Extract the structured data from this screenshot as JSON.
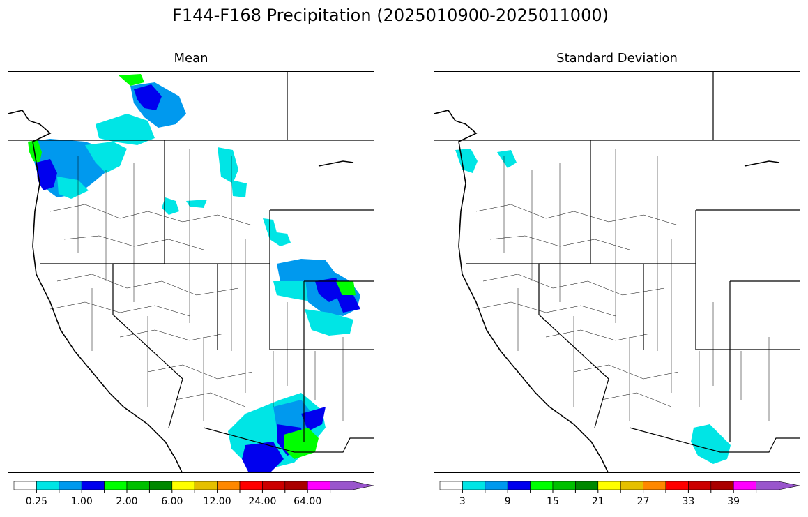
{
  "title": "F144-F168 Precipitation (2025010900-2025011000)",
  "panels": [
    {
      "subtitle": "Mean"
    },
    {
      "subtitle": "Standard Deviation"
    }
  ],
  "colorbar_colors": [
    "#ffffff",
    "#00e5e5",
    "#0099ee",
    "#0000ee",
    "#00ff00",
    "#00c000",
    "#008800",
    "#ffff00",
    "#e5c000",
    "#ff8800",
    "#ff0000",
    "#cc0000",
    "#aa0000",
    "#ff00ff",
    "#9955cc"
  ],
  "colorbars": [
    {
      "labels": [
        "0.25",
        "1.00",
        "2.00",
        "6.00",
        "12.00",
        "24.00",
        "64.00"
      ]
    },
    {
      "labels": [
        "3",
        "9",
        "15",
        "21",
        "27",
        "33",
        "39"
      ]
    }
  ]
}
